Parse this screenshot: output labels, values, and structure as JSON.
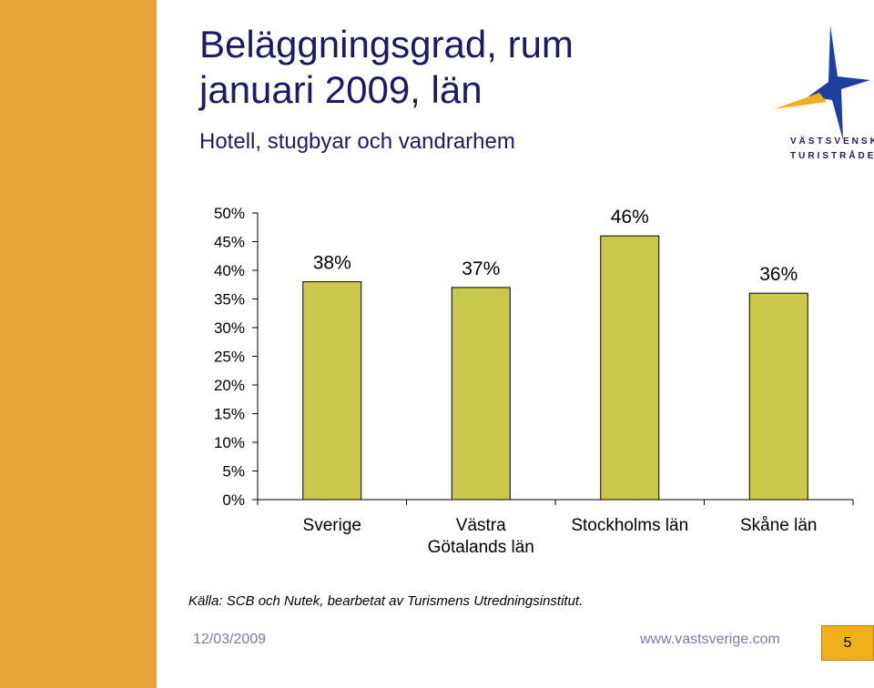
{
  "slide": {
    "title_line1": "Beläggningsgrad, rum",
    "title_line2": "januari 2009, län",
    "subtitle": "Hotell, stugbyar och vandrarhem",
    "source": "Källa: SCB och Nutek, bearbetat av Turismens Utredningsinstitut.",
    "date": "12/03/2009",
    "url": "www.vastsverige.com",
    "page_number": "5"
  },
  "logo": {
    "line1": "VÄSTSVENSKA",
    "line2": "TURISTRÅDET",
    "icon": "star-icon"
  },
  "colors": {
    "sidebar": "#E5A33A",
    "bar_fill": "#C8C84A",
    "title": "#1a1a66",
    "page_box": "#F2AF1C",
    "logo_blue": "#1F3FA0",
    "logo_yellow": "#F2AF1C"
  },
  "chart_data": {
    "type": "bar",
    "categories": [
      [
        "Sverige"
      ],
      [
        "Västra",
        "Götalands län"
      ],
      [
        "Stockholms län"
      ],
      [
        "Skåne län"
      ]
    ],
    "values": [
      38,
      37,
      46,
      36
    ],
    "data_labels": [
      "38%",
      "37%",
      "46%",
      "36%"
    ],
    "yticks": [
      0,
      5,
      10,
      15,
      20,
      25,
      30,
      35,
      40,
      45,
      50
    ],
    "ytick_labels": [
      "0%",
      "5%",
      "10%",
      "15%",
      "20%",
      "25%",
      "30%",
      "35%",
      "40%",
      "45%",
      "50%"
    ],
    "ylim": [
      0,
      50
    ],
    "grid": false,
    "legend": "none"
  }
}
